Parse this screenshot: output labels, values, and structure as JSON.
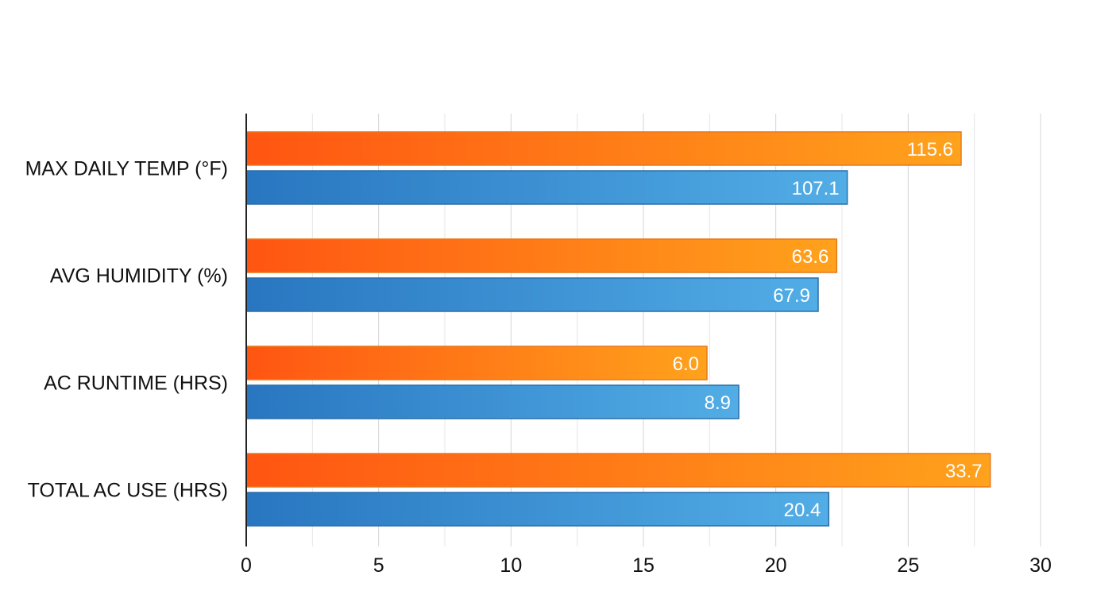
{
  "chart_data": {
    "type": "bar",
    "orientation": "horizontal",
    "categories": [
      "MAX DAILY TEMP (°F)",
      "AVG HUMIDITY (%)",
      "AC RUNTIME (HRS)",
      "TOTAL AC USE (HRS)"
    ],
    "series": [
      {
        "values": [
          27.0,
          22.3,
          17.4,
          28.1
        ],
        "labels": [
          "115.6",
          "63.6",
          "6.0",
          "33.7"
        ],
        "color_start": "#ff5512",
        "color_end": "#ffa21c",
        "border": "#e8791a"
      },
      {
        "values": [
          22.7,
          21.6,
          18.6,
          22.0
        ],
        "labels": [
          "107.1",
          "67.9",
          "8.9",
          "20.4"
        ],
        "color_start": "#2876c0",
        "color_end": "#52ade6",
        "border": "#2a6ea8"
      }
    ],
    "xlim": [
      0,
      30
    ],
    "xticks": [
      0,
      5,
      10,
      15,
      20,
      25,
      30
    ],
    "grid": "vertical",
    "legend": "none",
    "title": "",
    "xlabel": "",
    "ylabel": ""
  }
}
